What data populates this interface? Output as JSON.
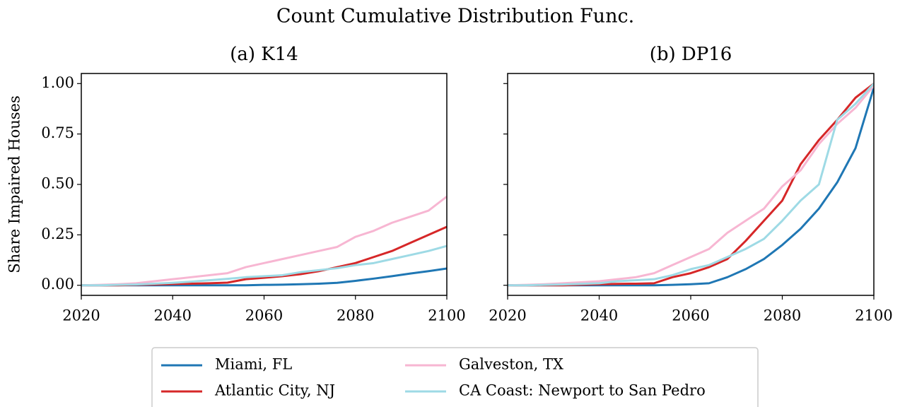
{
  "title": "Count Cumulative Distribution Func.",
  "chart_data": [
    {
      "type": "line",
      "title": "(a) K14",
      "ylabel": "Share Impaired Houses",
      "x": [
        2020,
        2024,
        2028,
        2032,
        2036,
        2040,
        2044,
        2048,
        2052,
        2056,
        2060,
        2064,
        2068,
        2072,
        2076,
        2080,
        2084,
        2088,
        2092,
        2096,
        2100
      ],
      "xlim": [
        2020,
        2100
      ],
      "xticks": [
        2020,
        2040,
        2060,
        2080,
        2100
      ],
      "ylim": [
        -0.05,
        1.05
      ],
      "yticks": [
        {
          "value": 0,
          "label": "0.00"
        },
        {
          "value": 0.25,
          "label": "0.25"
        },
        {
          "value": 0.5,
          "label": "0.50"
        },
        {
          "value": 0.75,
          "label": "0.75"
        },
        {
          "value": 1,
          "label": "1.00"
        }
      ],
      "series": [
        {
          "name": "Miami, FL",
          "color": "#1f77b4",
          "values": [
            0,
            0,
            0,
            0,
            0,
            0,
            0,
            0,
            0,
            0,
            0.002,
            0.003,
            0.005,
            0.008,
            0.012,
            0.022,
            0.033,
            0.045,
            0.058,
            0.07,
            0.083
          ]
        },
        {
          "name": "Atlantic City, NJ",
          "color": "#d62728",
          "values": [
            0,
            0,
            0,
            0.002,
            0.004,
            0.006,
            0.008,
            0.01,
            0.013,
            0.03,
            0.037,
            0.045,
            0.055,
            0.07,
            0.09,
            0.11,
            0.14,
            0.17,
            0.21,
            0.25,
            0.29
          ]
        },
        {
          "name": "Galveston, TX",
          "color": "#f7b6d2",
          "values": [
            0,
            0.002,
            0.005,
            0.01,
            0.02,
            0.03,
            0.04,
            0.05,
            0.06,
            0.09,
            0.11,
            0.13,
            0.15,
            0.17,
            0.19,
            0.24,
            0.27,
            0.31,
            0.34,
            0.37,
            0.44
          ]
        },
        {
          "name": "CA Coast: Newport to San Pedro",
          "color": "#9edae5",
          "values": [
            0,
            0,
            0.002,
            0.004,
            0.008,
            0.012,
            0.018,
            0.025,
            0.032,
            0.04,
            0.045,
            0.05,
            0.065,
            0.075,
            0.085,
            0.1,
            0.11,
            0.13,
            0.15,
            0.17,
            0.195
          ]
        }
      ]
    },
    {
      "type": "line",
      "title": "(b) DP16",
      "x": [
        2020,
        2024,
        2028,
        2032,
        2036,
        2040,
        2044,
        2048,
        2052,
        2056,
        2060,
        2064,
        2068,
        2072,
        2076,
        2080,
        2084,
        2088,
        2092,
        2096,
        2100
      ],
      "xlim": [
        2020,
        2100
      ],
      "xticks": [
        2020,
        2040,
        2060,
        2080,
        2100
      ],
      "ylim": [
        -0.05,
        1.05
      ],
      "series": [
        {
          "name": "Miami, FL",
          "color": "#1f77b4",
          "values": [
            0,
            0,
            0,
            0,
            0,
            0,
            0,
            0,
            0,
            0.002,
            0.005,
            0.01,
            0.04,
            0.08,
            0.13,
            0.2,
            0.28,
            0.38,
            0.51,
            0.68,
            0.98
          ]
        },
        {
          "name": "Atlantic City, NJ",
          "color": "#d62728",
          "values": [
            0,
            0,
            0,
            0,
            0.003,
            0.005,
            0.007,
            0.008,
            0.01,
            0.04,
            0.06,
            0.09,
            0.13,
            0.22,
            0.32,
            0.42,
            0.6,
            0.72,
            0.82,
            0.93,
            1.0
          ]
        },
        {
          "name": "Galveston, TX",
          "color": "#f7b6d2",
          "values": [
            0,
            0.002,
            0.005,
            0.01,
            0.015,
            0.02,
            0.03,
            0.04,
            0.06,
            0.1,
            0.14,
            0.18,
            0.26,
            0.32,
            0.38,
            0.49,
            0.57,
            0.7,
            0.8,
            0.88,
            0.99
          ]
        },
        {
          "name": "CA Coast: Newport to San Pedro",
          "color": "#9edae5",
          "values": [
            0,
            0,
            0.002,
            0.004,
            0.007,
            0.01,
            0.02,
            0.025,
            0.03,
            0.05,
            0.08,
            0.1,
            0.14,
            0.18,
            0.23,
            0.32,
            0.42,
            0.5,
            0.82,
            0.9,
            1.0
          ]
        }
      ]
    }
  ]
}
